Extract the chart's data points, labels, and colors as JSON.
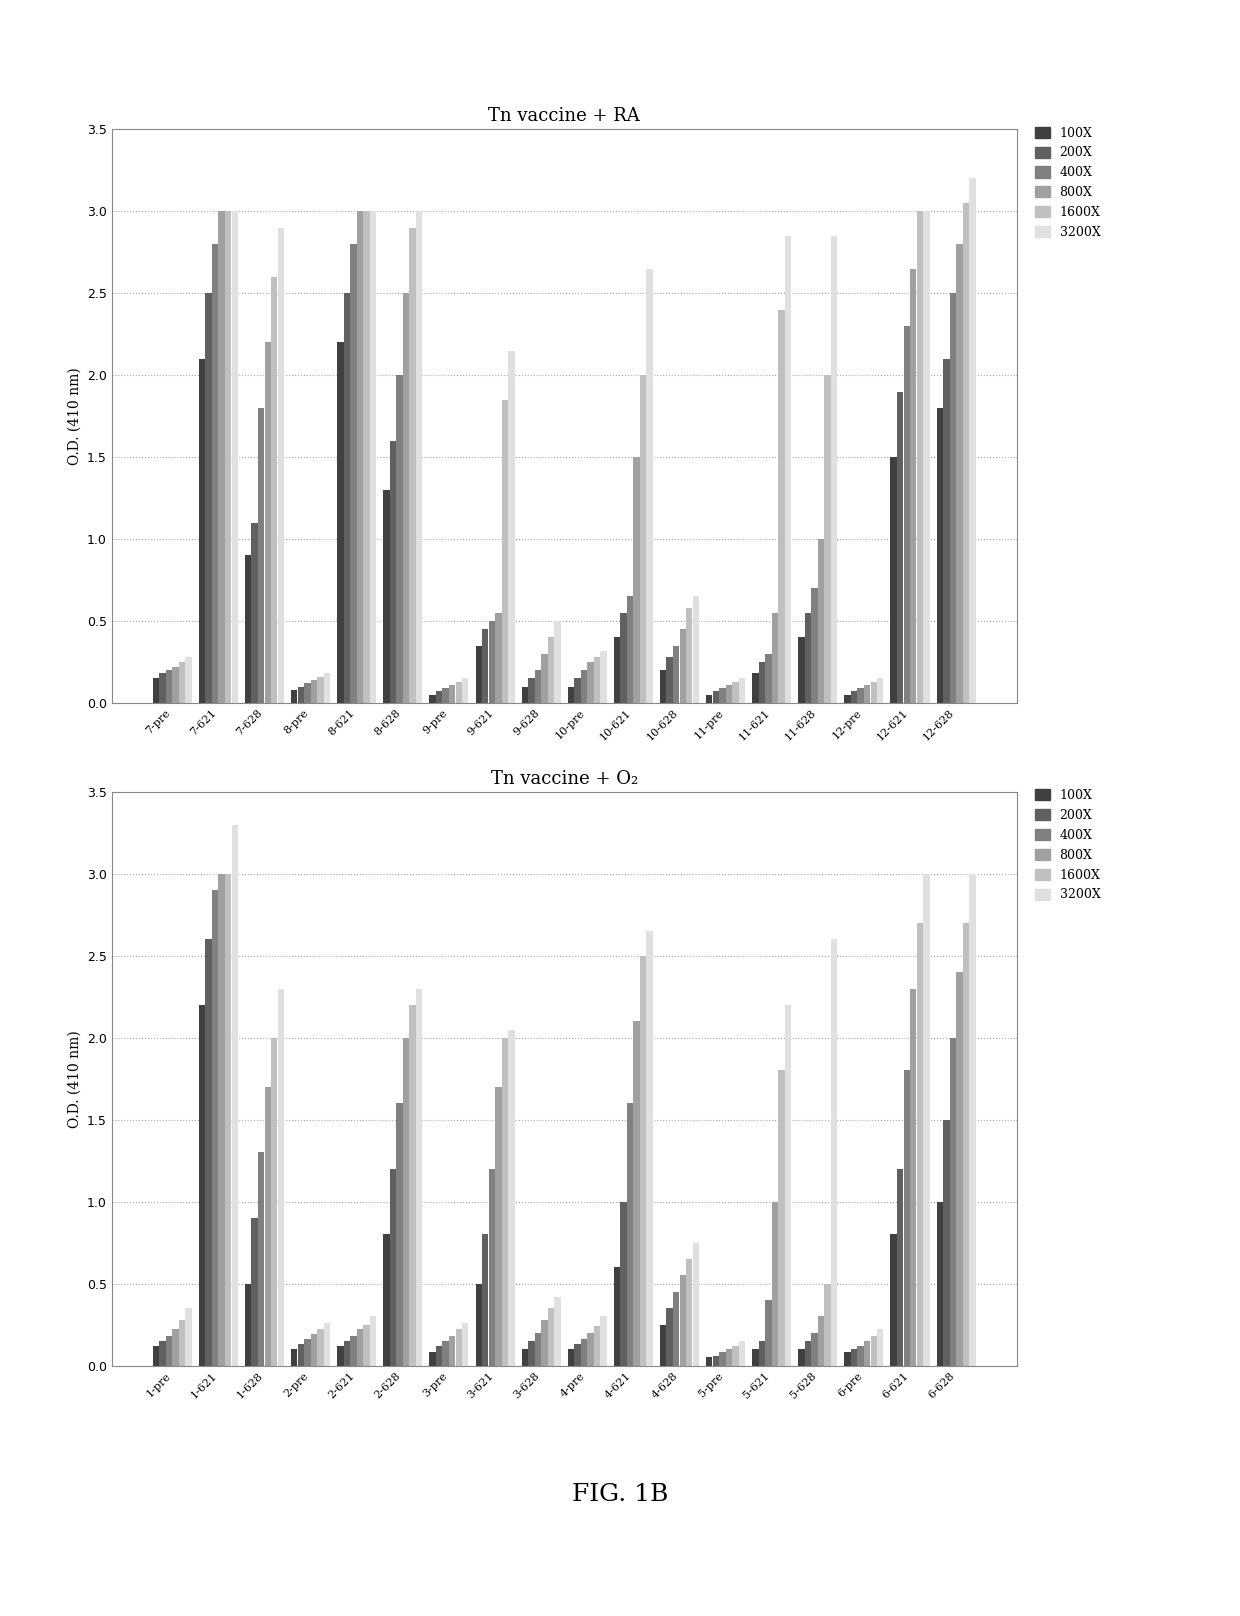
{
  "title1": "Tn vaccine + RA",
  "title2": "Tn vaccine + O₂",
  "ylabel": "O.D. (410 nm)",
  "ylim": [
    0,
    3.5
  ],
  "yticks": [
    0,
    0.5,
    1.0,
    1.5,
    2.0,
    2.5,
    3.0,
    3.5
  ],
  "figcaption": "FIG. 1B",
  "categories1": [
    "7-pre",
    "7-621",
    "7-628",
    "8-pre",
    "8-621",
    "8-628",
    "9-pre",
    "9-621",
    "9-628",
    "10-pre",
    "10-621",
    "10-628",
    "11-pre",
    "11-621",
    "11-628",
    "12-pre",
    "12-621",
    "12-628"
  ],
  "categories2": [
    "1-pre",
    "1-621",
    "1-628",
    "2-pre",
    "2-621",
    "2-628",
    "3-pre",
    "3-621",
    "3-628",
    "4-pre",
    "4-621",
    "4-628",
    "5-pre",
    "5-621",
    "5-628",
    "6-pre",
    "6-621",
    "6-628"
  ],
  "series_labels": [
    "100X",
    "200X",
    "400X",
    "800X",
    "1600X",
    "3200X"
  ],
  "colors": [
    "#404040",
    "#606060",
    "#808080",
    "#a0a0a0",
    "#c0c0c0",
    "#e0e0e0"
  ],
  "data1": {
    "7-pre": [
      0.15,
      0.18,
      0.2,
      0.22,
      0.25,
      0.28
    ],
    "7-621": [
      2.1,
      2.5,
      2.8,
      3.0,
      3.0,
      3.0
    ],
    "7-628": [
      0.9,
      1.1,
      1.8,
      2.2,
      2.6,
      2.9
    ],
    "8-pre": [
      0.08,
      0.1,
      0.12,
      0.14,
      0.16,
      0.18
    ],
    "8-621": [
      2.2,
      2.5,
      2.8,
      3.0,
      3.0,
      3.0
    ],
    "8-628": [
      1.3,
      1.6,
      2.0,
      2.5,
      2.9,
      3.0
    ],
    "9-pre": [
      0.05,
      0.07,
      0.09,
      0.11,
      0.13,
      0.15
    ],
    "9-621": [
      0.35,
      0.45,
      0.5,
      0.55,
      1.85,
      2.15
    ],
    "9-628": [
      0.1,
      0.15,
      0.2,
      0.3,
      0.4,
      0.5
    ],
    "10-pre": [
      0.1,
      0.15,
      0.2,
      0.25,
      0.28,
      0.32
    ],
    "10-621": [
      0.4,
      0.55,
      0.65,
      1.5,
      2.0,
      2.65
    ],
    "10-628": [
      0.2,
      0.28,
      0.35,
      0.45,
      0.58,
      0.65
    ],
    "11-pre": [
      0.05,
      0.07,
      0.09,
      0.11,
      0.13,
      0.15
    ],
    "11-621": [
      0.18,
      0.25,
      0.3,
      0.55,
      2.4,
      2.85
    ],
    "11-628": [
      0.4,
      0.55,
      0.7,
      1.0,
      2.0,
      2.85
    ],
    "12-pre": [
      0.05,
      0.07,
      0.09,
      0.11,
      0.13,
      0.15
    ],
    "12-621": [
      1.5,
      1.9,
      2.3,
      2.65,
      3.0,
      3.0
    ],
    "12-628": [
      1.8,
      2.1,
      2.5,
      2.8,
      3.05,
      3.2
    ]
  },
  "data2": {
    "1-pre": [
      0.12,
      0.15,
      0.18,
      0.22,
      0.28,
      0.35
    ],
    "1-621": [
      2.2,
      2.6,
      2.9,
      3.0,
      3.0,
      3.3
    ],
    "1-628": [
      0.5,
      0.9,
      1.3,
      1.7,
      2.0,
      2.3
    ],
    "2-pre": [
      0.1,
      0.13,
      0.16,
      0.19,
      0.22,
      0.26
    ],
    "2-621": [
      0.12,
      0.15,
      0.18,
      0.22,
      0.25,
      0.3
    ],
    "2-628": [
      0.8,
      1.2,
      1.6,
      2.0,
      2.2,
      2.3
    ],
    "3-pre": [
      0.08,
      0.12,
      0.15,
      0.18,
      0.22,
      0.26
    ],
    "3-621": [
      0.5,
      0.8,
      1.2,
      1.7,
      2.0,
      2.05
    ],
    "3-628": [
      0.1,
      0.15,
      0.2,
      0.28,
      0.35,
      0.42
    ],
    "4-pre": [
      0.1,
      0.13,
      0.16,
      0.2,
      0.24,
      0.3
    ],
    "4-621": [
      0.6,
      1.0,
      1.6,
      2.1,
      2.5,
      2.65
    ],
    "4-628": [
      0.25,
      0.35,
      0.45,
      0.55,
      0.65,
      0.75
    ],
    "5-pre": [
      0.05,
      0.06,
      0.08,
      0.1,
      0.12,
      0.15
    ],
    "5-621": [
      0.1,
      0.15,
      0.4,
      1.0,
      1.8,
      2.2
    ],
    "5-628": [
      0.1,
      0.15,
      0.2,
      0.3,
      0.5,
      2.6
    ],
    "6-pre": [
      0.08,
      0.1,
      0.12,
      0.15,
      0.18,
      0.22
    ],
    "6-621": [
      0.8,
      1.2,
      1.8,
      2.3,
      2.7,
      3.0
    ],
    "6-628": [
      1.0,
      1.5,
      2.0,
      2.4,
      2.7,
      3.0
    ]
  }
}
